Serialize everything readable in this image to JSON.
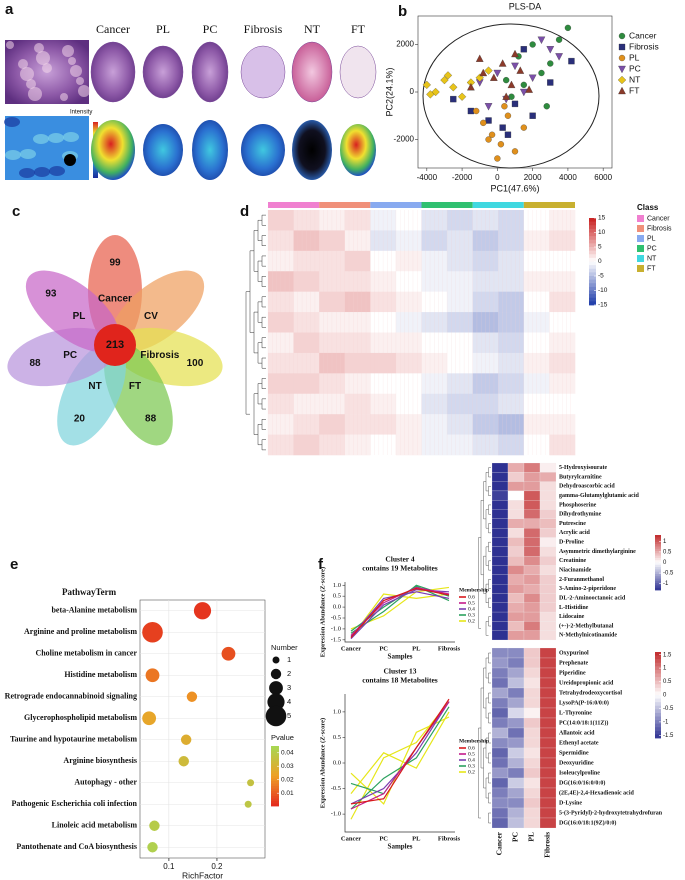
{
  "chart_data": [
    {
      "type": "image-grid",
      "panel": "a",
      "labels": [
        "Cancer",
        "PL",
        "PC",
        "Fibrosis",
        "NT",
        "FT"
      ],
      "legend_title": "Intensity"
    },
    {
      "type": "scatter",
      "panel": "b",
      "title": "PLS-DA",
      "xlabel": "PC1(47.6%)",
      "ylabel": "PC2(24.1%)",
      "xlim": [
        -4500,
        6500
      ],
      "ylim": [
        -3200,
        3200
      ],
      "xticks": [
        -4000,
        -2000,
        0,
        2000,
        4000,
        6000
      ],
      "yticks": [
        -2000,
        0,
        2000
      ],
      "legend": "right",
      "series": [
        {
          "name": "Cancer",
          "color": "#2e8b3e",
          "marker": "circle",
          "x": [
            500,
            1200,
            2000,
            2500,
            3000,
            3500,
            4000,
            800,
            1500,
            2800
          ],
          "y": [
            500,
            1500,
            2000,
            800,
            1200,
            2200,
            2700,
            -200,
            300,
            -600
          ]
        },
        {
          "name": "Fibrosis",
          "color": "#2a2f7a",
          "marker": "square",
          "x": [
            -1500,
            -500,
            300,
            1000,
            2000,
            3000,
            4200,
            -2500,
            1500,
            600
          ],
          "y": [
            -800,
            -1200,
            -1500,
            -500,
            -1000,
            400,
            1300,
            -300,
            1800,
            -1800
          ]
        },
        {
          "name": "PL",
          "color": "#e0901c",
          "marker": "circle",
          "x": [
            -800,
            -300,
            200,
            600,
            1000,
            -1200,
            0,
            1500,
            400,
            -500
          ],
          "y": [
            -1300,
            -1800,
            -2200,
            -1000,
            -2500,
            -800,
            -2800,
            -1500,
            -600,
            -2000
          ]
        },
        {
          "name": "PC",
          "color": "#7b4fa8",
          "marker": "triangle-down",
          "x": [
            -1000,
            0,
            1000,
            2000,
            3000,
            500,
            1500,
            2500,
            -500,
            3500
          ],
          "y": [
            400,
            800,
            1100,
            600,
            1800,
            -300,
            0,
            2200,
            -600,
            1500
          ]
        },
        {
          "name": "NT",
          "color": "#e8c41a",
          "marker": "diamond",
          "x": [
            -4000,
            -3500,
            -3000,
            -2500,
            -2000,
            -1500,
            -1000,
            -500,
            -3800,
            -2800
          ],
          "y": [
            300,
            0,
            500,
            200,
            -200,
            400,
            600,
            900,
            -100,
            700
          ]
        },
        {
          "name": "FT",
          "color": "#8b3a2a",
          "marker": "triangle-up",
          "x": [
            -1500,
            -800,
            -200,
            300,
            800,
            1300,
            1800,
            -1000,
            500,
            1000
          ],
          "y": [
            200,
            800,
            600,
            1200,
            300,
            900,
            100,
            1400,
            -200,
            1600
          ]
        }
      ]
    },
    {
      "type": "venn",
      "panel": "c",
      "center": 213,
      "center_color": "#e0241c",
      "sets": [
        {
          "name": "Cancer",
          "value": 99,
          "color": "#e8604c"
        },
        {
          "name": "CV",
          "color": "#eea060"
        },
        {
          "name": "Fibrosis",
          "value": 100,
          "color": "#e4e050"
        },
        {
          "name": "FT",
          "value": 88,
          "color": "#7cc850"
        },
        {
          "name": "NT",
          "value": 20,
          "color": "#80d4dc"
        },
        {
          "name": "PC",
          "value": 88,
          "color": "#b894dc"
        },
        {
          "name": "PL",
          "value": 93,
          "color": "#c866c8"
        }
      ]
    },
    {
      "type": "heatmap",
      "panel": "d",
      "legend_title": "Class",
      "classes": [
        {
          "name": "Cancer",
          "color": "#f080d0"
        },
        {
          "name": "Fibrosis",
          "color": "#f0907a"
        },
        {
          "name": "PL",
          "color": "#88aaf0"
        },
        {
          "name": "PC",
          "color": "#30c070"
        },
        {
          "name": "NT",
          "color": "#40d8e0"
        },
        {
          "name": "FT",
          "color": "#c8b030"
        }
      ],
      "vlim": [
        -15,
        15
      ],
      "colorbar_ticks": [
        15,
        10,
        5,
        0,
        -5,
        -10,
        -15
      ],
      "values": [
        [
          3,
          2,
          1,
          2,
          -1,
          0,
          -2,
          -3,
          -2,
          -3,
          0,
          1
        ],
        [
          2,
          4,
          3,
          1,
          -2,
          -1,
          -3,
          -2,
          -4,
          -3,
          1,
          2
        ],
        [
          1,
          2,
          2,
          3,
          0,
          1,
          -1,
          -2,
          -3,
          -2,
          0,
          0
        ],
        [
          4,
          3,
          2,
          2,
          1,
          0,
          -1,
          -1,
          -2,
          -2,
          1,
          1
        ],
        [
          2,
          1,
          3,
          4,
          2,
          1,
          0,
          -1,
          -3,
          -4,
          0,
          2
        ],
        [
          3,
          2,
          1,
          1,
          0,
          -1,
          -2,
          -3,
          -5,
          -4,
          -1,
          0
        ],
        [
          1,
          3,
          2,
          2,
          1,
          1,
          0,
          0,
          -2,
          -3,
          0,
          1
        ],
        [
          2,
          2,
          4,
          3,
          3,
          2,
          1,
          0,
          -1,
          -2,
          1,
          2
        ],
        [
          3,
          3,
          2,
          1,
          0,
          0,
          -1,
          -2,
          -4,
          -3,
          -1,
          1
        ],
        [
          2,
          1,
          1,
          2,
          1,
          0,
          -2,
          -3,
          -3,
          -2,
          0,
          0
        ],
        [
          1,
          2,
          3,
          2,
          2,
          1,
          -1,
          -2,
          -4,
          -5,
          1,
          1
        ],
        [
          2,
          3,
          2,
          1,
          0,
          1,
          -1,
          -1,
          -2,
          -3,
          0,
          2
        ]
      ]
    },
    {
      "type": "bubble",
      "panel": "e",
      "category_label": "PathwayTerm",
      "xlabel": "RichFactor",
      "xlim": [
        0.04,
        0.3
      ],
      "xticks": [
        0.1,
        0.2
      ],
      "categories": [
        "beta-Alanine metabolism",
        "Arginine and proline metabolism",
        "Choline metabolism in cancer",
        "Histidine metabolism",
        "Retrograde endocannabinoid signaling",
        "Glycerophospholipid metabolism",
        "Taurine and hypotaurine metabolism",
        "Arginine biosynthesis",
        "Autophagy - other",
        "Pathogenic Escherichia coli infection",
        "Linoleic acid metabolism",
        "Pantothenate and CoA biosynthesis"
      ],
      "x": [
        0.17,
        0.066,
        0.224,
        0.066,
        0.148,
        0.059,
        0.136,
        0.131,
        0.27,
        0.265,
        0.07,
        0.066
      ],
      "sizes": [
        4,
        5,
        3,
        3,
        2,
        3,
        2,
        2,
        1,
        1,
        2,
        2
      ],
      "pvalues": [
        0.003,
        0.005,
        0.008,
        0.015,
        0.02,
        0.025,
        0.028,
        0.033,
        0.036,
        0.038,
        0.04,
        0.042
      ],
      "size_legend": {
        "title": "Number",
        "values": [
          1,
          2,
          3,
          4,
          5
        ]
      },
      "color_legend": {
        "title": "Pvalue",
        "range": [
          0.0005,
          0.045
        ],
        "ticks": [
          0.04,
          0.03,
          0.02,
          0.01
        ]
      }
    },
    {
      "type": "line",
      "panel": "f",
      "title": "Cluster 4",
      "subtitle": "contains 19 Metabolites",
      "xlabel": "Samples",
      "ylabel": "Expression Abundance (Z-score)",
      "categories": [
        "Cancer",
        "PC",
        "PL",
        "Fibrosis"
      ],
      "ylim": [
        -1.6,
        1.15
      ],
      "yticks": [
        -1.5,
        {
          "value": -1,
          "label": "-1.0"
        },
        -0.5,
        {
          "value": 0,
          "label": "0.0"
        },
        0.5,
        {
          "value": 1,
          "label": "1.0"
        }
      ],
      "legend_title": "Membership",
      "legend": [
        {
          "level": 0.6,
          "color": "#d7191c"
        },
        {
          "level": 0.5,
          "color": "#c51b8a"
        },
        {
          "level": 0.4,
          "color": "#7a3db0"
        },
        {
          "level": 0.3,
          "color": "#2ca25f"
        },
        {
          "level": 0.2,
          "color": "#e6e619"
        }
      ],
      "series": [
        {
          "color": "#e6e619",
          "values": [
            -1.0,
            -0.4,
            0.7,
            0.9
          ]
        },
        {
          "color": "#e6e619",
          "values": [
            -1.4,
            0.6,
            0.4,
            0.6
          ]
        },
        {
          "color": "#2ca25f",
          "values": [
            -1.2,
            -0.2,
            1.0,
            0.5
          ]
        },
        {
          "color": "#2ca25f",
          "values": [
            -1.1,
            0.0,
            0.95,
            0.3
          ]
        },
        {
          "color": "#7a3db0",
          "values": [
            -1.45,
            0.1,
            0.8,
            0.7
          ]
        },
        {
          "color": "#7a3db0",
          "values": [
            -1.35,
            0.4,
            0.7,
            0.4
          ]
        },
        {
          "color": "#c51b8a",
          "values": [
            -1.3,
            0.2,
            0.9,
            0.6
          ]
        },
        {
          "color": "#d7191c",
          "values": [
            -1.4,
            0.3,
            0.85,
            0.55
          ]
        }
      ]
    },
    {
      "type": "line",
      "title": "Cluster 13",
      "subtitle": "contains 18 Metabolites",
      "xlabel": "Samples",
      "ylabel": "Expression Abundance (Z-score)",
      "categories": [
        "Cancer",
        "PC",
        "PL",
        "Fibrosis"
      ],
      "ylim": [
        -1.35,
        1.35
      ],
      "yticks": [
        {
          "value": -1,
          "label": "-1.0"
        },
        -0.5,
        {
          "value": 0,
          "label": "0.0"
        },
        0.5,
        {
          "value": 1,
          "label": "1.0"
        }
      ],
      "legend_title": "Membership",
      "legend": [
        {
          "level": 0.6,
          "color": "#d7191c"
        },
        {
          "level": 0.5,
          "color": "#c51b8a"
        },
        {
          "level": 0.4,
          "color": "#7a3db0"
        },
        {
          "level": 0.3,
          "color": "#2ca25f"
        },
        {
          "level": 0.2,
          "color": "#e6e619"
        }
      ],
      "series": [
        {
          "color": "#e6e619",
          "values": [
            -0.6,
            0.2,
            -0.1,
            1.0
          ]
        },
        {
          "color": "#e6e619",
          "values": [
            -0.2,
            -0.8,
            0.6,
            0.9
          ]
        },
        {
          "color": "#e6e619",
          "values": [
            -1.1,
            0.1,
            0.4,
            1.2
          ]
        },
        {
          "color": "#2ca25f",
          "values": [
            -0.9,
            -0.3,
            0.1,
            1.1
          ]
        },
        {
          "color": "#2ca25f",
          "values": [
            -0.4,
            -0.6,
            0.3,
            1.2
          ]
        },
        {
          "color": "#7a3db0",
          "values": [
            -0.8,
            -0.5,
            0.2,
            1.2
          ]
        },
        {
          "color": "#c51b8a",
          "values": [
            -0.9,
            -0.6,
            0.3,
            1.2
          ]
        },
        {
          "color": "#d7191c",
          "values": [
            -0.8,
            -0.7,
            0.3,
            1.25
          ]
        }
      ]
    },
    {
      "type": "heatmap-small",
      "vlim": [
        -1.3,
        1.3
      ],
      "colorbar_ticks": [
        1,
        0.5,
        0,
        -0.5,
        -1
      ],
      "rows": [
        "5-Hydroxyisourate",
        "Butyrylcarnitine",
        "Dehydroascorbic acid",
        "gamma-Glutamylglutamic acid",
        "Phosphoserine",
        "Dihydrothymine",
        "Putrescine",
        "Acrylic acid",
        "D-Proline",
        "Asymmetric dimethylarginine",
        "Creatinine",
        "Niacinamide",
        "2-Furanmethanol",
        "3-Amino-2-piperidone",
        "DL-2-Aminooctanoic acid",
        "L-Histidine",
        "Lidocaine",
        "(+-)-2-Methylbutanal",
        "N-Methylnicotinamide"
      ],
      "values": [
        [
          -1.3,
          0.5,
          0.8,
          0.1
        ],
        [
          -1.3,
          0.3,
          0.6,
          0.5
        ],
        [
          -1.3,
          0.6,
          0.6,
          0.2
        ],
        [
          -1.2,
          0.0,
          1.0,
          0.2
        ],
        [
          -1.3,
          0.2,
          1.0,
          0.2
        ],
        [
          -1.3,
          0.2,
          0.9,
          0.3
        ],
        [
          -1.3,
          0.5,
          0.5,
          0.4
        ],
        [
          -1.3,
          0.2,
          0.9,
          0.3
        ],
        [
          -1.3,
          0.4,
          0.9,
          0.1
        ],
        [
          -1.3,
          0.3,
          0.9,
          0.2
        ],
        [
          -1.3,
          0.4,
          0.7,
          0.3
        ],
        [
          -1.3,
          0.7,
          0.5,
          0.2
        ],
        [
          -1.3,
          0.5,
          0.6,
          0.3
        ],
        [
          -1.3,
          0.6,
          0.5,
          0.3
        ],
        [
          -1.3,
          0.4,
          0.7,
          0.3
        ],
        [
          -1.3,
          0.5,
          0.6,
          0.3
        ],
        [
          -1.3,
          0.6,
          0.6,
          0.2
        ],
        [
          -1.3,
          0.4,
          0.8,
          0.2
        ],
        [
          -1.3,
          0.6,
          0.6,
          0.2
        ]
      ]
    },
    {
      "type": "heatmap-small",
      "vlim": [
        -1.6,
        1.6
      ],
      "colorbar_ticks": [
        1.5,
        1,
        0.5,
        0,
        -0.5,
        -1,
        -1.5
      ],
      "columns": [
        "Cancer",
        "PC",
        "PL",
        "Fibrosis"
      ],
      "rows": [
        "Oxypurinol",
        "Prephenate",
        "Piperidine",
        "Ureidopropionic acid",
        "Tetrahydrodeoxycortisol",
        "LysoPA(P-16:0/0:0)",
        "L-Thyronine",
        "PC(14:0/18:1(11Z))",
        "Allantoic acid",
        "Ethenyl acetate",
        "Spermidine",
        "Deoxyuridine",
        "Isoleucylproline",
        "DG(16:0/16:0/0:0)",
        "(2E,4E)-2,4-Hexadienoic acid",
        "D-Lysine",
        "5-(3-Pyridyl)-2-hydroxytetrahydrofuran",
        "DG(16:0/18:1(9Z)/0:0)"
      ],
      "values": [
        [
          -0.9,
          -0.9,
          0.4,
          1.4
        ],
        [
          -0.8,
          -1.0,
          0.4,
          1.4
        ],
        [
          -1.0,
          -0.7,
          0.3,
          1.4
        ],
        [
          -1.1,
          -0.5,
          0.2,
          1.4
        ],
        [
          -0.7,
          -1.0,
          0.3,
          1.4
        ],
        [
          -1.0,
          -0.7,
          0.3,
          1.4
        ],
        [
          -1.2,
          -0.3,
          0.1,
          1.4
        ],
        [
          -1.0,
          -0.8,
          0.4,
          1.4
        ],
        [
          -0.6,
          -1.1,
          0.3,
          1.4
        ],
        [
          -0.9,
          -0.8,
          0.3,
          1.4
        ],
        [
          -1.2,
          -0.4,
          0.2,
          1.4
        ],
        [
          -1.1,
          -0.6,
          0.3,
          1.4
        ],
        [
          -0.8,
          -1.0,
          0.4,
          1.4
        ],
        [
          -1.2,
          -0.4,
          0.2,
          1.4
        ],
        [
          -1.0,
          -0.7,
          0.3,
          1.4
        ],
        [
          -0.9,
          -0.9,
          0.4,
          1.4
        ],
        [
          -1.1,
          -0.6,
          0.3,
          1.4
        ],
        [
          -1.2,
          -0.5,
          0.3,
          1.4
        ]
      ]
    }
  ]
}
